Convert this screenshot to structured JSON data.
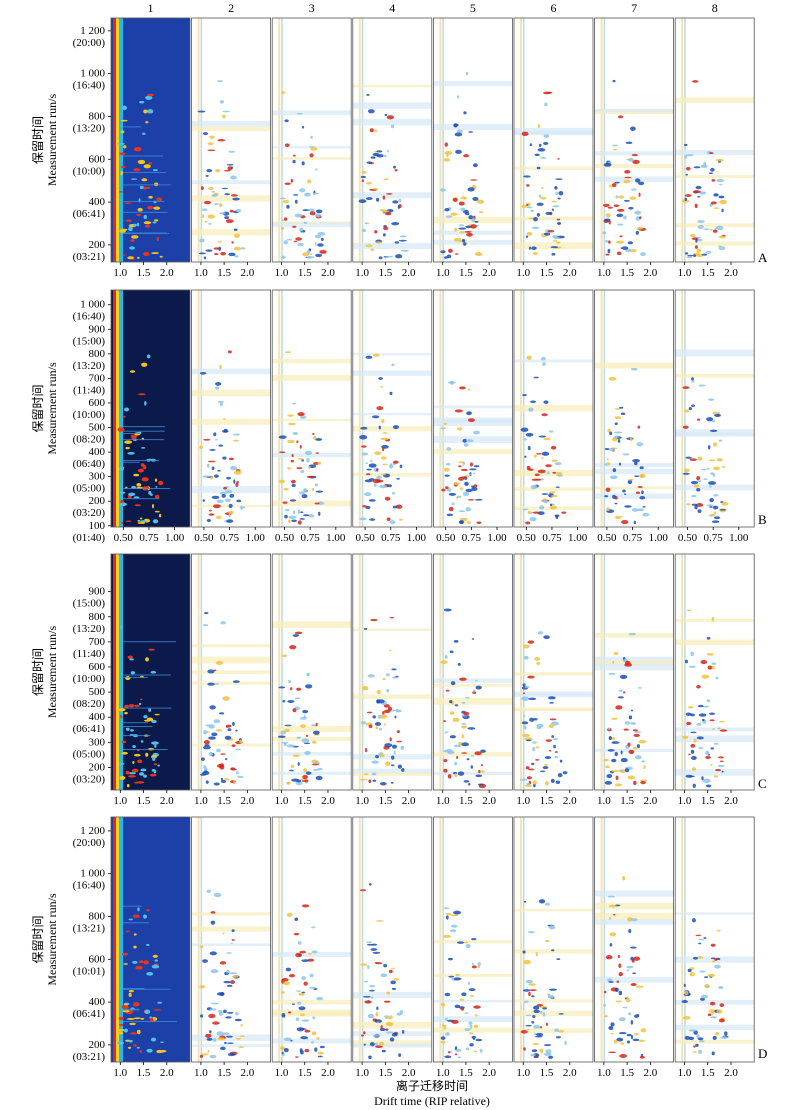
{
  "figure": {
    "column_labels": [
      "1",
      "2",
      "3",
      "4",
      "5",
      "6",
      "7",
      "8"
    ],
    "x_axis_title_cn": "离子迁移时间",
    "x_axis_title_en": "Drift time (RIP relative)",
    "y_axis_title_cn": "保留时间",
    "y_axis_title_en": "Measurement run/s",
    "colors": {
      "background_map": "#1c3fa8",
      "positive": "#d62418",
      "negative": "#1a4fb8",
      "neutral": "#ffffff"
    }
  },
  "chart_data": [
    {
      "type": "heatmap",
      "panel": "A",
      "x_ticks": [
        "1.0",
        "1.5",
        "2.0"
      ],
      "y_ticks": [
        {
          "value": 1200,
          "label": "1 200",
          "time": "(20:00)"
        },
        {
          "value": 1000,
          "label": "1 000",
          "time": "(16:40)"
        },
        {
          "value": 800,
          "label": "800",
          "time": "(13:20)"
        },
        {
          "value": 600,
          "label": "600",
          "time": "(10:00)"
        },
        {
          "value": 400,
          "label": "400",
          "time": "(06:41)"
        },
        {
          "value": 200,
          "label": "200",
          "time": "(03:21)"
        }
      ]
    },
    {
      "type": "heatmap",
      "panel": "B",
      "x_ticks": [
        "0.50",
        "0.75",
        "1.00"
      ],
      "y_ticks": [
        {
          "value": 1000,
          "label": "1 000",
          "time": "(16:40)"
        },
        {
          "value": 900,
          "label": "900",
          "time": "(15:00)"
        },
        {
          "value": 800,
          "label": "800",
          "time": "(13:20)"
        },
        {
          "value": 700,
          "label": "700",
          "time": "(11:40)"
        },
        {
          "value": 600,
          "label": "600",
          "time": "(10:00)"
        },
        {
          "value": 500,
          "label": "500",
          "time": "(08:20)"
        },
        {
          "value": 400,
          "label": "400",
          "time": "(06:40)"
        },
        {
          "value": 300,
          "label": "300",
          "time": "(05:00)"
        },
        {
          "value": 200,
          "label": "200",
          "time": "(03:20)"
        },
        {
          "value": 100,
          "label": "100",
          "time": "(01:40)"
        }
      ]
    },
    {
      "type": "heatmap",
      "panel": "C",
      "x_ticks": [
        "1.0",
        "1.5",
        "2.0"
      ],
      "y_ticks": [
        {
          "value": 900,
          "label": "900",
          "time": "(15:00)"
        },
        {
          "value": 800,
          "label": "800",
          "time": "(13:20)"
        },
        {
          "value": 700,
          "label": "700",
          "time": "(11:40)"
        },
        {
          "value": 600,
          "label": "600",
          "time": "(10:00)"
        },
        {
          "value": 500,
          "label": "500",
          "time": "(08:20)"
        },
        {
          "value": 400,
          "label": "400",
          "time": "(06:41)"
        },
        {
          "value": 300,
          "label": "300",
          "time": "(05:00)"
        },
        {
          "value": 200,
          "label": "200",
          "time": "(03:20)"
        }
      ]
    },
    {
      "type": "heatmap",
      "panel": "D",
      "x_ticks": [
        "1.0",
        "1.5",
        "2.0"
      ],
      "y_ticks": [
        {
          "value": 1200,
          "label": "1 200",
          "time": "(20:00)"
        },
        {
          "value": 1000,
          "label": "1 000",
          "time": "(16:40)"
        },
        {
          "value": 800,
          "label": "800",
          "time": "(13:21)"
        },
        {
          "value": 600,
          "label": "600",
          "time": "(10:01)"
        },
        {
          "value": 400,
          "label": "400",
          "time": "(06:41)"
        },
        {
          "value": 200,
          "label": "200",
          "time": "(03:21)"
        }
      ]
    }
  ]
}
